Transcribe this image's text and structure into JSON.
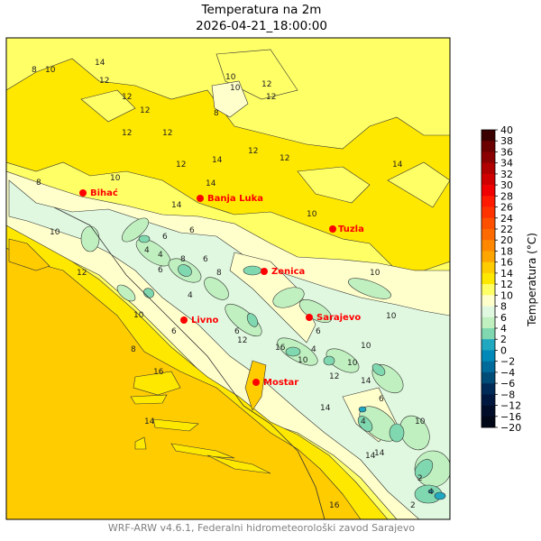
{
  "title": {
    "line1": "Temperatura na 2m",
    "line2": "2026-04-21_18:00:00"
  },
  "footer": "WRF-ARW v4.6.1, Federalni hidrometeorološki zavod Sarajevo",
  "colorbar": {
    "label": "Temperatura (°C)",
    "ticks": [
      "40",
      "38",
      "36",
      "34",
      "32",
      "30",
      "28",
      "26",
      "24",
      "22",
      "20",
      "18",
      "16",
      "14",
      "12",
      "10",
      "8",
      "6",
      "4",
      "2",
      "0",
      "−2",
      "−4",
      "−6",
      "−8",
      "−12",
      "−16",
      "−20"
    ],
    "colors": [
      "#3b0000",
      "#6b0000",
      "#8b0000",
      "#b00000",
      "#d00000",
      "#f00000",
      "#ff1a00",
      "#ff3300",
      "#ff5000",
      "#ff6a00",
      "#ff8800",
      "#ffa500",
      "#ffcc00",
      "#ffe800",
      "#ffff66",
      "#ffffcc",
      "#e0f8e0",
      "#c0f0c0",
      "#80d8b0",
      "#20a8c0",
      "#0088b8",
      "#006a9a",
      "#004c78",
      "#002a58",
      "#001840",
      "#000c28",
      "#000818"
    ]
  },
  "map": {
    "colors": {
      "t10_12": "#ffff66",
      "t12_14": "#ffe800",
      "t14_16": "#ffcc00",
      "t8_10": "#ffffcc",
      "t6_8": "#e0f8e0",
      "t4_6": "#c0f0c0",
      "t2_4": "#80d8b0",
      "t0_2": "#20a8c0",
      "city": "#ff0000"
    },
    "cities": [
      "Bihać",
      "Banja Luka",
      "Tuzla",
      "Zenica",
      "Sarajevo",
      "Livno",
      "Mostar"
    ],
    "contour_labels": [
      "8",
      "10",
      "14",
      "12",
      "12",
      "12",
      "12",
      "10",
      "10",
      "8",
      "12",
      "12",
      "14",
      "12",
      "12",
      "14",
      "14",
      "12",
      "12",
      "14",
      "10",
      "10",
      "6",
      "8",
      "6",
      "10",
      "8",
      "10",
      "6",
      "4",
      "4",
      "6",
      "8",
      "4",
      "12",
      "10",
      "6",
      "8",
      "6",
      "10",
      "10",
      "6",
      "4",
      "10",
      "12",
      "12",
      "14",
      "14",
      "14",
      "14",
      "16",
      "10",
      "10",
      "6",
      "4",
      "4",
      "2",
      "2",
      "16",
      "14",
      "16"
    ]
  }
}
